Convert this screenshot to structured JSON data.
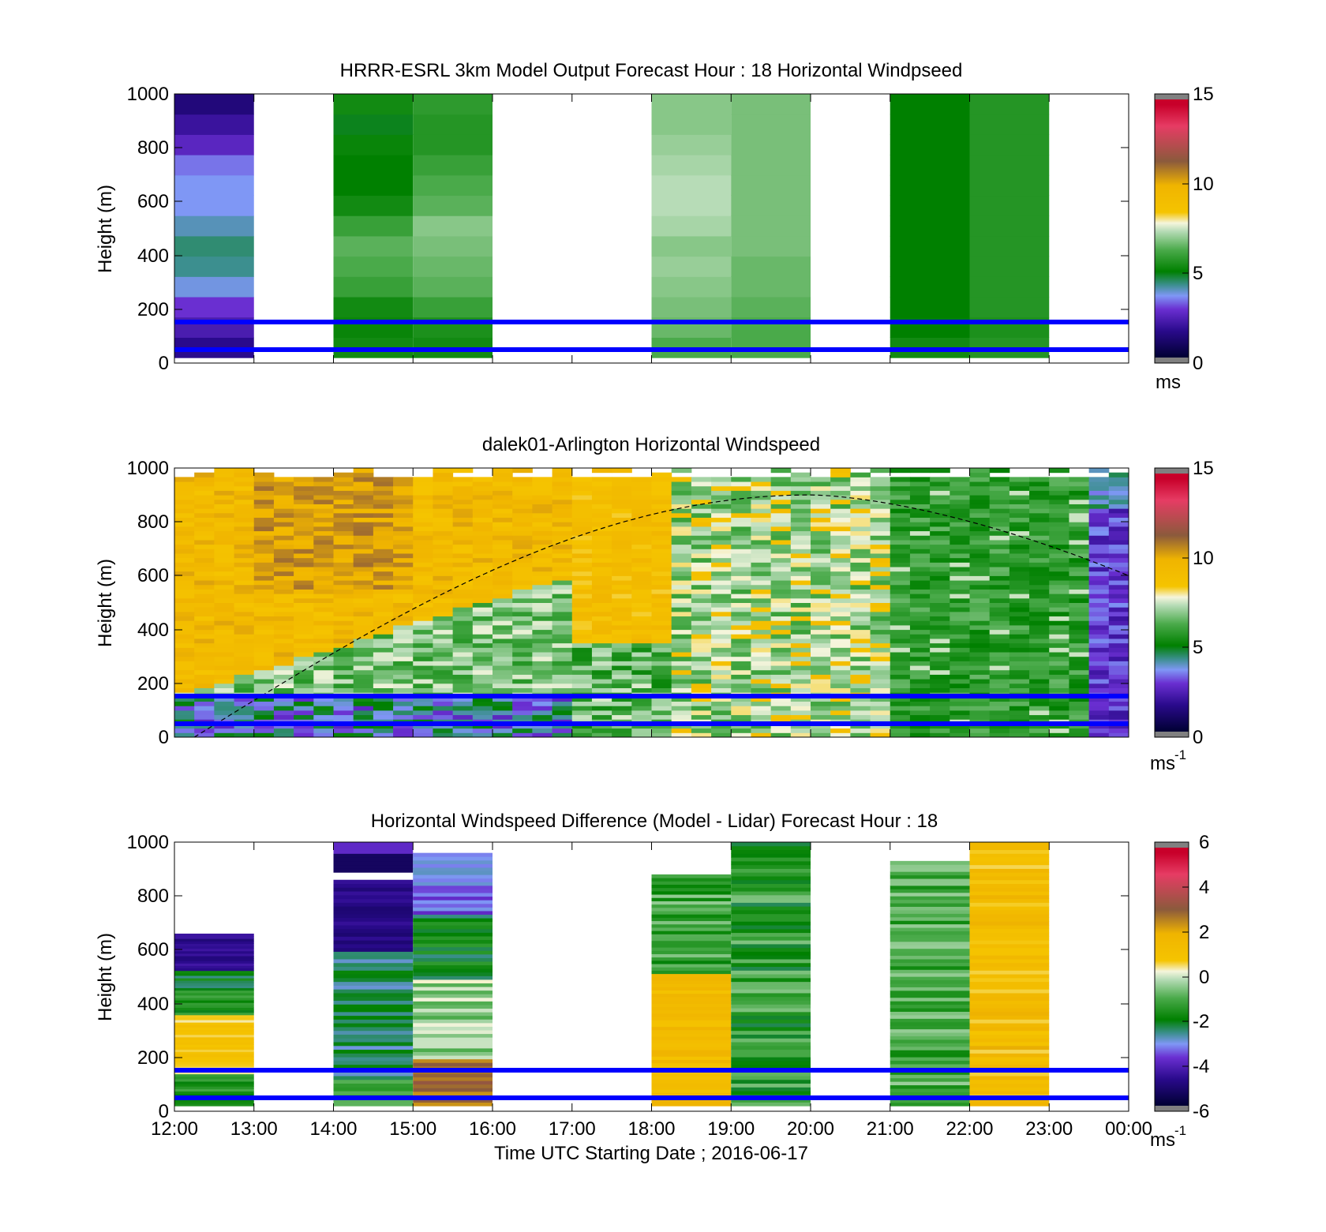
{
  "figure": {
    "xlabel": "Time UTC  Starting Date ; 2016-06-17",
    "x_ticks": [
      "12:00",
      "13:00",
      "14:00",
      "15:00",
      "16:00",
      "17:00",
      "18:00",
      "19:00",
      "20:00",
      "21:00",
      "22:00",
      "23:00",
      "00:00"
    ]
  },
  "colors": {
    "reference_lines": "#0000ff",
    "colormap_stops": [
      "#808080",
      "#000033",
      "#2a0a8c",
      "#6a2fd1",
      "#7f97f5",
      "#3c8f8f",
      "#008000",
      "#4aaa4a",
      "#b7dcb7",
      "#f5f5dc",
      "#f5c400",
      "#c89a1a",
      "#8b5a3c",
      "#e63c64",
      "#808080"
    ]
  },
  "chart_data": [
    {
      "type": "heatmap",
      "title": "HRRR-ESRL 3km Model Output   Forecast Hour : 18 Horizontal Windpseed",
      "ylabel": "Height (m)",
      "xlim": [
        "12:00",
        "00:00"
      ],
      "ylim": [
        0,
        1000
      ],
      "y_ticks": [
        "0",
        "200",
        "400",
        "600",
        "800",
        "1000"
      ],
      "colorbar": {
        "range": [
          0,
          15
        ],
        "ticks": [
          "0",
          "5",
          "10",
          "15"
        ],
        "unit": "ms"
      },
      "reference_lines_height": [
        50,
        150
      ],
      "columns": [
        {
          "start": "12:00",
          "end": "13:00",
          "approx_value": 2.5
        },
        {
          "start": "14:00",
          "end": "15:00",
          "approx_value": 5.0
        },
        {
          "start": "15:00",
          "end": "16:00",
          "approx_value": 5.5
        },
        {
          "start": "18:00",
          "end": "19:00",
          "approx_value": 6.5
        },
        {
          "start": "19:00",
          "end": "20:00",
          "approx_value": 6.0
        },
        {
          "start": "21:00",
          "end": "22:00",
          "approx_value": 4.8
        },
        {
          "start": "22:00",
          "end": "23:00",
          "approx_value": 5.2
        }
      ]
    },
    {
      "type": "heatmap",
      "title": "dalek01-Arlington  Horizontal Windspeed",
      "ylabel": "Height (m)",
      "xlim": [
        "12:00",
        "00:00"
      ],
      "ylim": [
        0,
        1000
      ],
      "y_ticks": [
        "0",
        "200",
        "400",
        "600",
        "800",
        "1000"
      ],
      "colorbar": {
        "range": [
          0,
          15
        ],
        "ticks": [
          "0",
          "5",
          "10",
          "15"
        ],
        "unit": "ms",
        "unit_exponent": "-1"
      },
      "reference_lines_height": [
        50,
        150
      ],
      "boundary_layer_curve": {
        "x": [
          "12:15",
          "16:00",
          "20:00",
          "00:00"
        ],
        "y": [
          0,
          700,
          900,
          600
        ]
      }
    },
    {
      "type": "heatmap",
      "title": "Horizontal Windspeed Difference (Model - Lidar) Forecast Hour : 18",
      "ylabel": "Height (m)",
      "xlim": [
        "12:00",
        "00:00"
      ],
      "ylim": [
        0,
        1000
      ],
      "y_ticks": [
        "0",
        "200",
        "400",
        "600",
        "800",
        "1000"
      ],
      "colorbar": {
        "range": [
          -6,
          6
        ],
        "ticks": [
          "-6",
          "-4",
          "-2",
          "0",
          "2",
          "4",
          "6"
        ],
        "unit": "ms",
        "unit_exponent": "-1"
      },
      "reference_lines_height": [
        50,
        150
      ],
      "columns": [
        {
          "start": "12:00",
          "end": "13:00",
          "top_height": 660
        },
        {
          "start": "14:00",
          "end": "15:00",
          "top_height": 1000
        },
        {
          "start": "15:00",
          "end": "16:00",
          "top_height": 960
        },
        {
          "start": "18:00",
          "end": "19:00",
          "top_height": 880
        },
        {
          "start": "19:00",
          "end": "20:00",
          "top_height": 1000
        },
        {
          "start": "21:00",
          "end": "22:00",
          "top_height": 930
        },
        {
          "start": "22:00",
          "end": "23:00",
          "top_height": 1000
        }
      ]
    }
  ]
}
